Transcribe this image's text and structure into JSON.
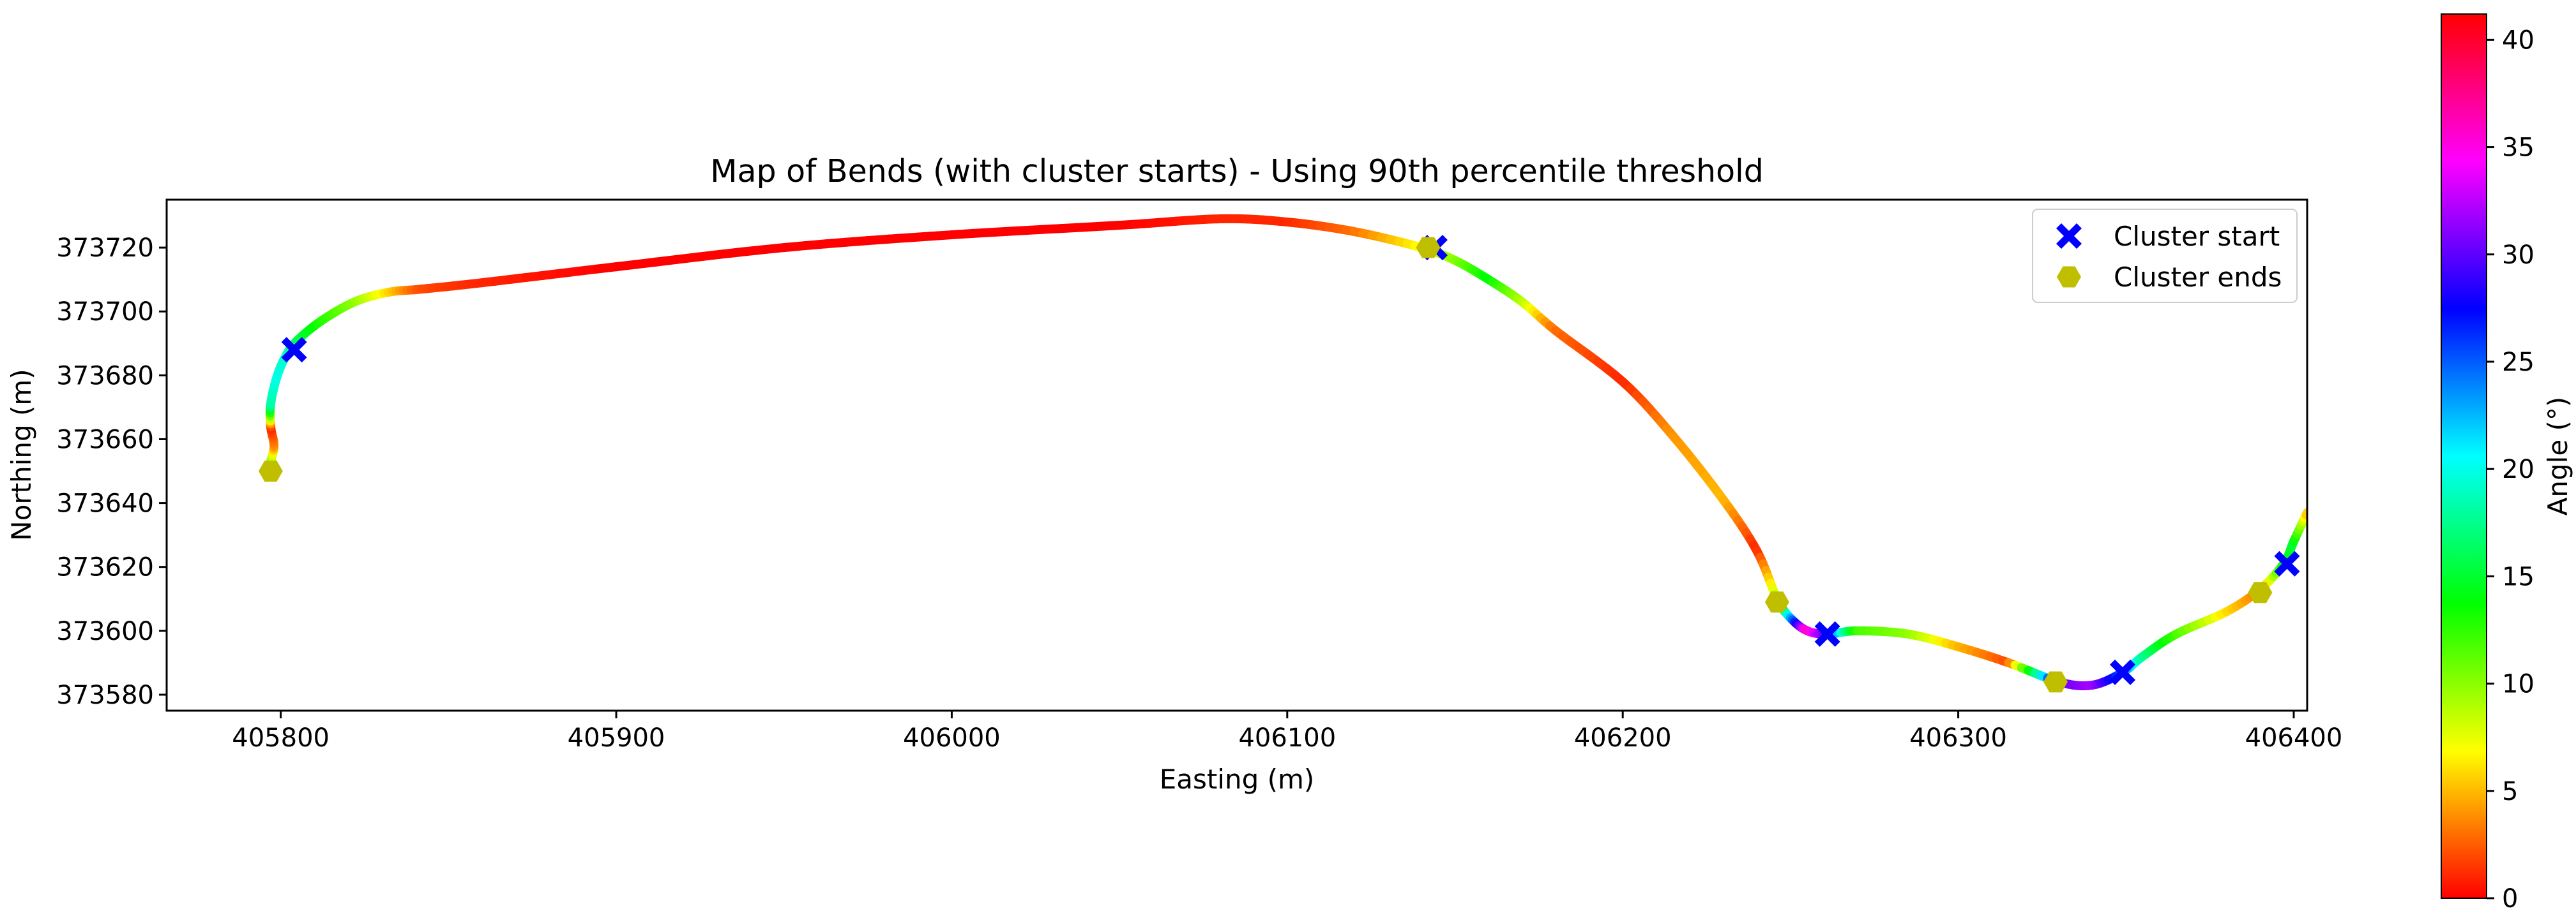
{
  "chart_data": {
    "type": "scatter",
    "title": "Map of Bends (with cluster starts) - Using 90th percentile threshold",
    "xlabel": "Easting (m)",
    "ylabel": "Northing (m)",
    "xlim": [
      405766,
      406404
    ],
    "ylim": [
      373575,
      373735
    ],
    "x_ticks": [
      405800,
      405900,
      406000,
      406100,
      406200,
      406300,
      406400
    ],
    "y_ticks": [
      373580,
      373600,
      373620,
      373640,
      373660,
      373680,
      373700,
      373720
    ],
    "colorbar": {
      "label": "Angle (°)",
      "range": [
        0,
        41.2
      ],
      "ticks": [
        0,
        5,
        10,
        15,
        20,
        25,
        30,
        35,
        40
      ],
      "colormap": "hsv",
      "colors": [
        "#ff0000",
        "#ffff00",
        "#00ff00",
        "#00ffff",
        "#0000ff",
        "#ff00ff",
        "#ff0000"
      ]
    },
    "path": {
      "x": [
        405797,
        405798,
        405797,
        405797,
        405799,
        405802,
        405805,
        405812,
        405822,
        405832,
        405842,
        405860,
        405900,
        405950,
        406000,
        406050,
        406080,
        406100,
        406120,
        406140,
        406150,
        406160,
        406170,
        406180,
        406200,
        406215,
        406230,
        406240,
        406246,
        406250,
        406255,
        406261,
        406270,
        406285,
        406300,
        406315,
        406330,
        406340,
        406349,
        406355,
        406365,
        406380,
        406390,
        406397,
        406400,
        406404
      ],
      "y": [
        373653,
        373658,
        373664,
        373671,
        373680,
        373687,
        373691,
        373697,
        373703,
        373706,
        373707,
        373709,
        373714,
        373720,
        373724,
        373727,
        373729,
        373728,
        373725,
        373720,
        373716,
        373710,
        373703,
        373694,
        373678,
        373661,
        373641,
        373625,
        373610,
        373604,
        373600,
        373599,
        373600,
        373599,
        373595,
        373590,
        373584,
        373583,
        373587,
        373592,
        373599,
        373606,
        373613,
        373621,
        373628,
        373637
      ],
      "angle": [
        12,
        4,
        1,
        18,
        20,
        19,
        16,
        13,
        10,
        6,
        2,
        1,
        0,
        0,
        0,
        0,
        1,
        1,
        3,
        7,
        10,
        14,
        9,
        3,
        1,
        4,
        5,
        1,
        9,
        22,
        36,
        30,
        12,
        10,
        5,
        2,
        30,
        32,
        25,
        18,
        12,
        6,
        3,
        14,
        15,
        5
      ]
    },
    "series": [
      {
        "name": "Cluster start",
        "marker": "X",
        "color": "#0000ff",
        "x": [
          405804,
          406144,
          406261,
          406349,
          406398
        ],
        "y": [
          373688,
          373720,
          373599,
          373587,
          373621
        ]
      },
      {
        "name": "Cluster ends",
        "marker": "hexagon",
        "color": "#bfbf00",
        "x": [
          405797,
          406142,
          406246,
          406329,
          406390
        ],
        "y": [
          373650,
          373720,
          373609,
          373584,
          373612
        ]
      }
    ],
    "legend_position": "top-right",
    "grid": false
  }
}
